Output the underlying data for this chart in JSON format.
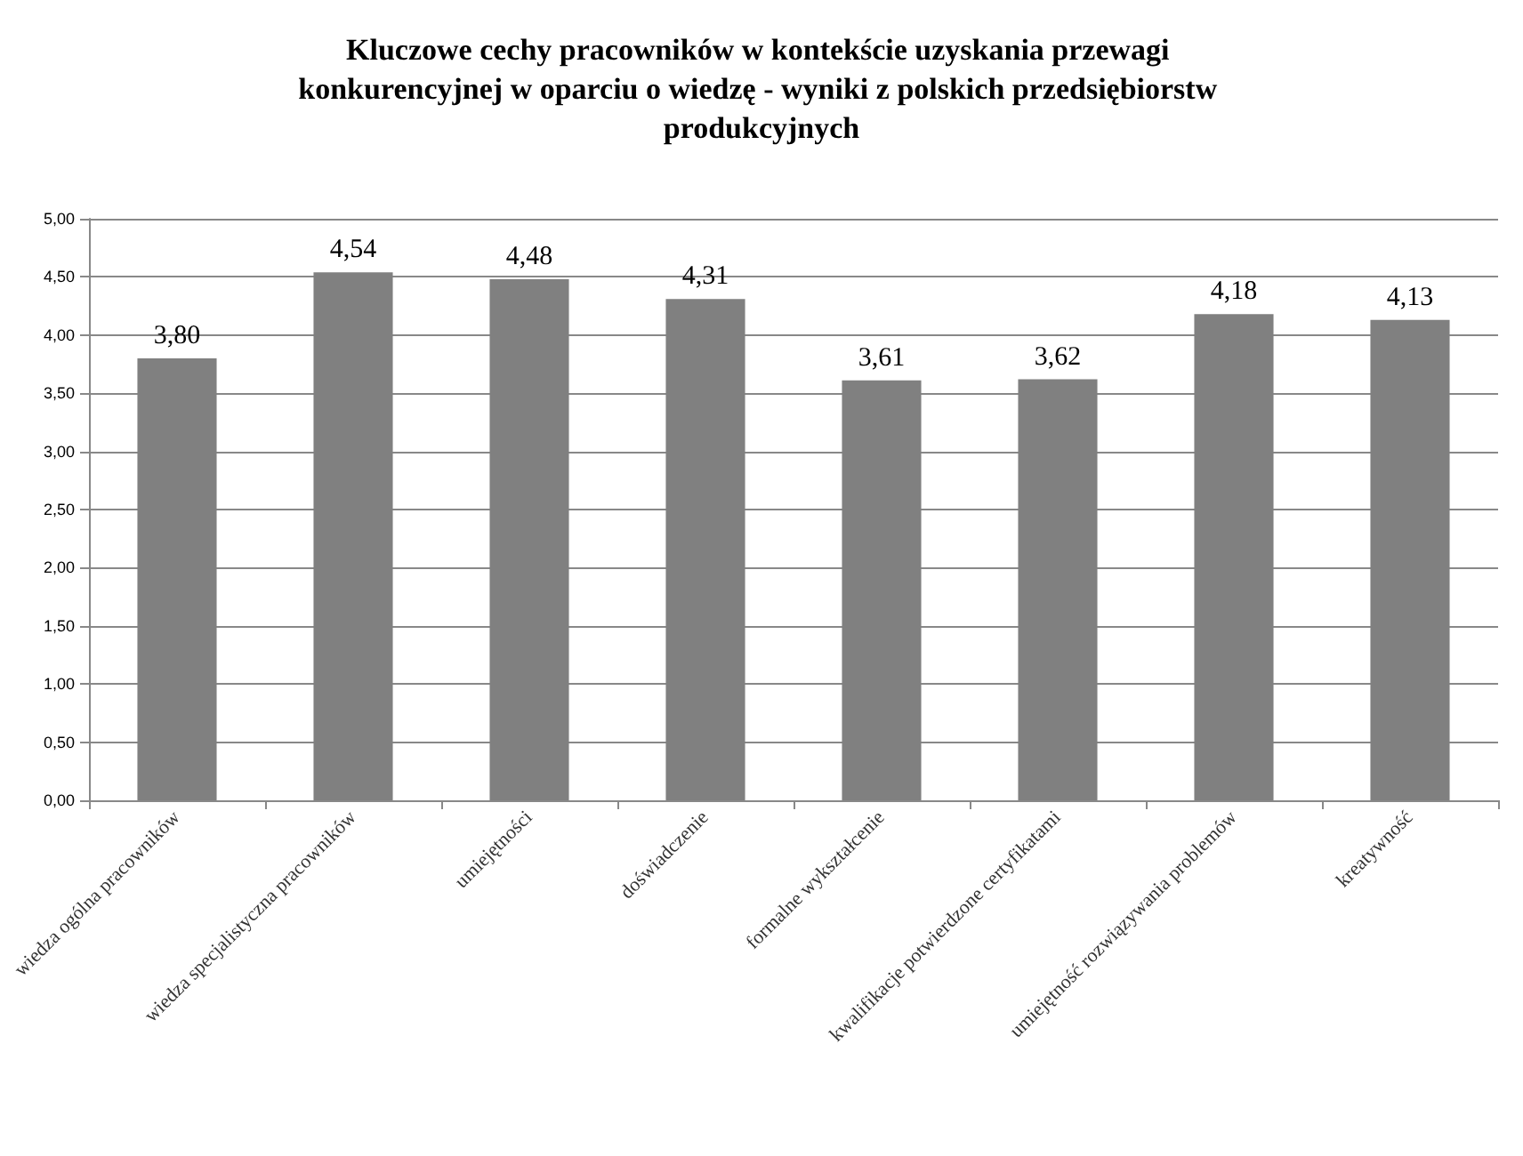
{
  "chart_data": {
    "type": "bar",
    "title": "Kluczowe cechy pracowników w kontekście uzyskania przewagi konkurencyjnej w oparciu o wiedzę - wyniki z polskich przedsiębiorstw produkcyjnych",
    "categories": [
      "wiedza ogólna pracowników",
      "wiedza specjalistyczna pracowników",
      "umiejętności",
      "doświadczenie",
      "formalne wykształcenie",
      "kwalifikacje potwierdzone certyfikatami",
      "umiejętność rozwiązywania problemów",
      "kreatywność"
    ],
    "values": [
      3.8,
      4.54,
      4.48,
      4.31,
      3.61,
      3.62,
      4.18,
      4.13
    ],
    "value_labels": [
      "3,80",
      "4,54",
      "4,48",
      "4,31",
      "3,61",
      "3,62",
      "4,18",
      "4,13"
    ],
    "color": "#808080",
    "ylim": [
      0,
      5
    ],
    "yticks": [
      {
        "value": 0,
        "label": "0,00"
      },
      {
        "value": 0.5,
        "label": "0,50"
      },
      {
        "value": 1,
        "label": "1,00"
      },
      {
        "value": 1.5,
        "label": "1,50"
      },
      {
        "value": 2,
        "label": "2,00"
      },
      {
        "value": 2.5,
        "label": "2,50"
      },
      {
        "value": 3,
        "label": "3,00"
      },
      {
        "value": 3.5,
        "label": "3,50"
      },
      {
        "value": 4,
        "label": "4,00"
      },
      {
        "value": 4.5,
        "label": "4,50"
      },
      {
        "value": 5,
        "label": "5,00"
      }
    ],
    "grid": true
  }
}
